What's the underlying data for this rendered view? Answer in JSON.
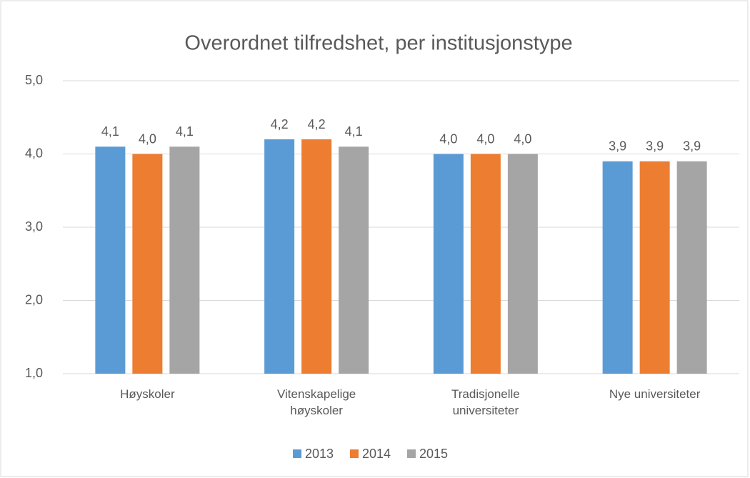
{
  "chart_data": {
    "type": "bar",
    "title": "Overordnet tilfredshet, per institusjonstype",
    "categories": [
      "Høyskoler",
      "Vitenskapelige høyskoler",
      "Tradisjonelle universiteter",
      "Nye universiteter"
    ],
    "series": [
      {
        "name": "2013",
        "color": "#5b9bd5",
        "values": [
          4.1,
          4.2,
          4.0,
          3.9
        ],
        "value_labels": [
          "4,1",
          "4,2",
          "4,0",
          "3,9"
        ]
      },
      {
        "name": "2014",
        "color": "#ed7d31",
        "values": [
          4.0,
          4.2,
          4.0,
          3.9
        ],
        "value_labels": [
          "4,0",
          "4,2",
          "4,0",
          "3,9"
        ]
      },
      {
        "name": "2015",
        "color": "#a5a5a5",
        "values": [
          4.1,
          4.1,
          4.0,
          3.9
        ],
        "value_labels": [
          "4,1",
          "4,1",
          "4,0",
          "3,9"
        ]
      }
    ],
    "ylim": [
      1,
      5
    ],
    "yticks": [
      {
        "value": 1,
        "label": "1,0"
      },
      {
        "value": 2,
        "label": "2,0"
      },
      {
        "value": 3,
        "label": "3,0"
      },
      {
        "value": 4,
        "label": "4,0"
      },
      {
        "value": 5,
        "label": "5,0"
      }
    ],
    "grid": true,
    "legend": "bottom"
  }
}
